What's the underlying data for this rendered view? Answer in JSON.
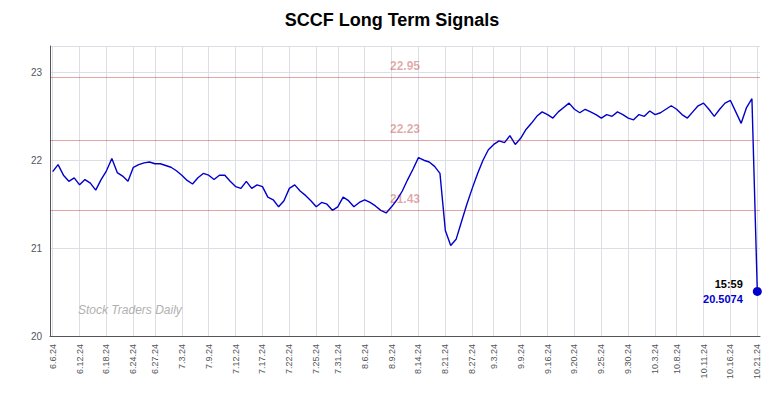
{
  "chart_data": {
    "type": "line",
    "title": "SCCF Long Term Signals",
    "color": "#0000cc",
    "grid": true,
    "ylim": [
      20.0,
      23.3
    ],
    "yticks": [
      20,
      21,
      22,
      23
    ],
    "categories": [
      "6.6.24",
      null,
      null,
      null,
      null,
      "6.12.24",
      null,
      null,
      null,
      null,
      "6.18.24",
      null,
      null,
      null,
      null,
      "6.24.24",
      null,
      null,
      null,
      "6.27.24",
      null,
      null,
      null,
      null,
      "7.3.24",
      null,
      null,
      null,
      null,
      "7.9.24",
      null,
      null,
      null,
      null,
      "7.12.24",
      null,
      null,
      null,
      null,
      "7.17.24",
      null,
      null,
      null,
      null,
      "7.22.24",
      null,
      null,
      null,
      null,
      "7.25.24",
      null,
      null,
      null,
      "7.31.24",
      null,
      null,
      null,
      null,
      "8.6.24",
      null,
      null,
      null,
      null,
      "8.9.24",
      null,
      null,
      null,
      null,
      "8.14.24",
      null,
      null,
      null,
      null,
      "8.21.24",
      null,
      null,
      null,
      null,
      "8.27.24",
      null,
      null,
      null,
      "9.3.24",
      null,
      null,
      null,
      null,
      "9.9.24",
      null,
      null,
      null,
      null,
      "9.16.24",
      null,
      null,
      null,
      null,
      "9.20.24",
      null,
      null,
      null,
      null,
      "9.25.24",
      null,
      null,
      null,
      null,
      "9.30.24",
      null,
      null,
      null,
      null,
      "10.3.24",
      null,
      null,
      null,
      "10.8.24",
      null,
      null,
      null,
      null,
      "10.11.24",
      null,
      null,
      null,
      null,
      "10.16.24",
      null,
      null,
      null,
      null,
      "10.21.24"
    ],
    "values": [
      21.87,
      21.95,
      21.83,
      21.76,
      21.8,
      21.72,
      21.78,
      21.74,
      21.66,
      21.78,
      21.88,
      22.02,
      21.86,
      21.82,
      21.76,
      21.92,
      21.95,
      21.97,
      21.98,
      21.96,
      21.96,
      21.94,
      21.92,
      21.88,
      21.83,
      21.77,
      21.73,
      21.8,
      21.85,
      21.83,
      21.78,
      21.83,
      21.83,
      21.76,
      21.7,
      21.68,
      21.76,
      21.68,
      21.72,
      21.7,
      21.58,
      21.55,
      21.47,
      21.54,
      21.68,
      21.72,
      21.65,
      21.6,
      21.54,
      21.47,
      21.52,
      21.5,
      21.43,
      21.47,
      21.58,
      21.54,
      21.47,
      21.52,
      21.55,
      21.52,
      21.48,
      21.43,
      21.4,
      21.47,
      21.55,
      21.65,
      21.78,
      21.9,
      22.03,
      22.0,
      21.98,
      21.93,
      21.85,
      21.2,
      21.03,
      21.1,
      21.3,
      21.5,
      21.68,
      21.85,
      22.0,
      22.12,
      22.18,
      22.22,
      22.2,
      22.28,
      22.18,
      22.25,
      22.35,
      22.42,
      22.5,
      22.55,
      22.52,
      22.48,
      22.55,
      22.6,
      22.65,
      22.58,
      22.54,
      22.58,
      22.55,
      22.52,
      22.48,
      22.52,
      22.5,
      22.55,
      22.52,
      22.48,
      22.46,
      22.52,
      22.5,
      22.56,
      22.52,
      22.54,
      22.58,
      22.62,
      22.58,
      22.52,
      22.48,
      22.55,
      22.62,
      22.65,
      22.58,
      22.5,
      22.58,
      22.65,
      22.68,
      22.55,
      22.42,
      22.6,
      22.7,
      20.5074
    ],
    "reference_lines": [
      {
        "y": 22.95,
        "label": "22.95",
        "color": "#aa0000"
      },
      {
        "y": 22.23,
        "label": "22.23",
        "color": "#aa0000"
      },
      {
        "y": 21.43,
        "label": "21.43",
        "color": "#aa0000"
      }
    ],
    "annotations": [
      {
        "text": "15:59",
        "color": "#000000"
      },
      {
        "text": "20.5074",
        "color": "#0000cc"
      }
    ],
    "watermark": {
      "text": "Stock Traders Daily",
      "color": "#b0b0b0"
    }
  }
}
